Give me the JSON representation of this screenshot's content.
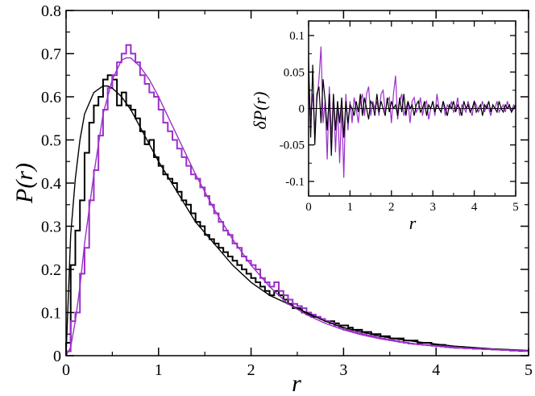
{
  "chart_data": [
    {
      "type": "line",
      "panel": "main",
      "xlabel": "r",
      "ylabel": "P(r)",
      "xlim": [
        0,
        5
      ],
      "ylim": [
        0,
        0.8
      ],
      "xticks": [
        0,
        1,
        2,
        3,
        4,
        5
      ],
      "yticks": [
        0,
        0.1,
        0.2,
        0.3,
        0.4,
        0.5,
        0.6,
        0.7,
        0.8
      ],
      "grid": false,
      "colors": {
        "black": "#000000",
        "purple": "#9b30c8"
      },
      "series": [
        {
          "kind": "histogram",
          "color": "#000000",
          "bin_width": 0.05,
          "bins_start": 0,
          "values": [
            0.03,
            0.21,
            0.29,
            0.36,
            0.47,
            0.54,
            0.58,
            0.6,
            0.64,
            0.65,
            0.64,
            0.58,
            0.61,
            0.58,
            0.57,
            0.55,
            0.52,
            0.49,
            0.5,
            0.46,
            0.44,
            0.42,
            0.41,
            0.4,
            0.38,
            0.36,
            0.35,
            0.33,
            0.31,
            0.3,
            0.28,
            0.27,
            0.26,
            0.25,
            0.24,
            0.23,
            0.22,
            0.21,
            0.2,
            0.19,
            0.18,
            0.17,
            0.16,
            0.15,
            0.14,
            0.15,
            0.14,
            0.13,
            0.12,
            0.11,
            0.11,
            0.1,
            0.095,
            0.09,
            0.09,
            0.085,
            0.08,
            0.08,
            0.075,
            0.07,
            0.07,
            0.065,
            0.06,
            0.06,
            0.055,
            0.055,
            0.05,
            0.05,
            0.045,
            0.045,
            0.04,
            0.04,
            0.04,
            0.035,
            0.035,
            0.035,
            0.03,
            0.03,
            0.03,
            0.025,
            0.025,
            0.025,
            0.02,
            0.02,
            0.02,
            0.02,
            0.018,
            0.018,
            0.016,
            0.016,
            0.015,
            0.015,
            0.014,
            0.014,
            0.013,
            0.013,
            0.012,
            0.012,
            0.011,
            0.011
          ]
        },
        {
          "kind": "histogram",
          "color": "#9b30c8",
          "bin_width": 0.05,
          "bins_start": 0,
          "values": [
            0.01,
            0.08,
            0.1,
            0.19,
            0.25,
            0.36,
            0.43,
            0.51,
            0.57,
            0.62,
            0.65,
            0.68,
            0.7,
            0.72,
            0.7,
            0.68,
            0.65,
            0.63,
            0.61,
            0.6,
            0.57,
            0.54,
            0.52,
            0.5,
            0.48,
            0.46,
            0.44,
            0.42,
            0.41,
            0.39,
            0.37,
            0.35,
            0.33,
            0.31,
            0.29,
            0.28,
            0.26,
            0.25,
            0.23,
            0.22,
            0.21,
            0.2,
            0.18,
            0.17,
            0.16,
            0.17,
            0.15,
            0.14,
            0.13,
            0.12,
            0.115,
            0.11,
            0.1,
            0.095,
            0.09,
            0.085,
            0.08,
            0.075,
            0.07,
            0.065,
            0.06,
            0.058,
            0.055,
            0.052,
            0.05,
            0.047,
            0.045,
            0.042,
            0.04,
            0.038,
            0.036,
            0.034,
            0.032,
            0.03,
            0.028,
            0.027,
            0.026,
            0.025,
            0.024,
            0.023,
            0.022,
            0.021,
            0.02,
            0.019,
            0.018,
            0.018,
            0.017,
            0.017,
            0.016,
            0.016,
            0.015,
            0.015,
            0.014,
            0.014,
            0.013,
            0.013,
            0.012,
            0.012,
            0.012,
            0.011
          ]
        },
        {
          "kind": "curve",
          "color": "#000000",
          "x": [
            0,
            0.05,
            0.1,
            0.15,
            0.2,
            0.3,
            0.4,
            0.45,
            0.5,
            0.6,
            0.7,
            0.8,
            0.9,
            1.0,
            1.2,
            1.4,
            1.6,
            1.8,
            2.0,
            2.2,
            2.4,
            2.6,
            2.8,
            3.0,
            3.2,
            3.4,
            3.6,
            3.8,
            4.0,
            4.2,
            4.4,
            4.6,
            4.8,
            5.0
          ],
          "y": [
            0,
            0.28,
            0.41,
            0.5,
            0.56,
            0.61,
            0.625,
            0.625,
            0.62,
            0.6,
            0.57,
            0.53,
            0.49,
            0.45,
            0.38,
            0.31,
            0.26,
            0.21,
            0.17,
            0.14,
            0.12,
            0.1,
            0.08,
            0.065,
            0.055,
            0.045,
            0.038,
            0.032,
            0.027,
            0.022,
            0.019,
            0.016,
            0.014,
            0.012
          ]
        },
        {
          "kind": "curve",
          "color": "#9b30c8",
          "x": [
            0,
            0.05,
            0.1,
            0.15,
            0.2,
            0.3,
            0.4,
            0.5,
            0.6,
            0.65,
            0.7,
            0.8,
            0.9,
            1.0,
            1.2,
            1.4,
            1.6,
            1.8,
            2.0,
            2.2,
            2.4,
            2.6,
            2.8,
            3.0,
            3.2,
            3.4,
            3.6,
            3.8,
            4.0,
            4.2,
            4.4,
            4.6,
            4.8,
            5.0
          ],
          "y": [
            0,
            0.02,
            0.08,
            0.16,
            0.26,
            0.42,
            0.56,
            0.64,
            0.685,
            0.69,
            0.69,
            0.67,
            0.64,
            0.6,
            0.51,
            0.42,
            0.34,
            0.27,
            0.21,
            0.16,
            0.12,
            0.095,
            0.075,
            0.06,
            0.048,
            0.039,
            0.032,
            0.027,
            0.023,
            0.02,
            0.017,
            0.015,
            0.013,
            0.011
          ]
        }
      ]
    },
    {
      "type": "line",
      "panel": "inset",
      "xlabel": "r",
      "ylabel": "δP(r)",
      "xlim": [
        0,
        5
      ],
      "ylim": [
        -0.12,
        0.12
      ],
      "xticks": [
        0,
        1,
        2,
        3,
        4,
        5
      ],
      "yticks": [
        "-0.1",
        "-0.05",
        "0",
        "0.05",
        "0.1"
      ],
      "ytick_values": [
        -0.1,
        -0.05,
        0,
        0.05,
        0.1
      ],
      "zero_line": true,
      "grid": false,
      "series": [
        {
          "color": "#000000",
          "x_start": 0,
          "x_step": 0.05,
          "values": [
            0.07,
            -0.04,
            0.06,
            -0.05,
            0.02,
            0.03,
            -0.02,
            0.04,
            0.01,
            -0.03,
            0.02,
            -0.065,
            0.02,
            -0.03,
            0.01,
            -0.02,
            0.015,
            -0.04,
            0.01,
            -0.02,
            0.005,
            0.0,
            -0.01,
            0.01,
            -0.005,
            0.02,
            -0.01,
            0.015,
            0.0,
            -0.015,
            0.01,
            0.005,
            -0.01,
            0.02,
            -0.005,
            0.01,
            0.0,
            -0.01,
            0.015,
            -0.005,
            0.01,
            0.0,
            0.005,
            -0.01,
            0.015,
            -0.005,
            0.02,
            -0.01,
            0.01,
            0.0,
            0.005,
            -0.01,
            0.005,
            0.01,
            -0.005,
            0.0,
            0.01,
            -0.01,
            0.005,
            0.0,
            0.01,
            -0.005,
            0.005,
            0.0,
            -0.005,
            0.01,
            0.0,
            -0.01,
            0.005,
            0.0,
            0.01,
            -0.005,
            0.005,
            0.0,
            -0.01,
            0.01,
            0.0,
            0.005,
            -0.005,
            0.0,
            0.01,
            -0.005,
            0.0,
            0.005,
            -0.01,
            0.005,
            0.0,
            0.01,
            -0.005,
            0.005,
            0.0,
            -0.005,
            0.01,
            0.0,
            -0.005,
            0.005,
            0.0,
            0.005,
            -0.005,
            0.0,
            0.005
          ]
        },
        {
          "color": "#9b30c8",
          "x_start": 0,
          "x_step": 0.05,
          "values": [
            0.03,
            -0.01,
            0.02,
            -0.03,
            0.01,
            0.04,
            0.085,
            -0.02,
            0.01,
            -0.07,
            0.03,
            -0.04,
            0.02,
            -0.06,
            0.01,
            -0.075,
            0.005,
            -0.095,
            0.02,
            -0.03,
            0.01,
            -0.02,
            0.015,
            0.0,
            -0.02,
            0.01,
            0.02,
            -0.01,
            0.02,
            0.03,
            -0.01,
            0.01,
            0.0,
            0.01,
            -0.01,
            0.02,
            0.025,
            -0.005,
            0.01,
            0.015,
            -0.02,
            0.02,
            0.045,
            -0.015,
            0.01,
            0.02,
            -0.01,
            0.0,
            0.01,
            -0.02,
            0.01,
            0.015,
            -0.005,
            0.0,
            0.015,
            -0.01,
            0.005,
            0.01,
            -0.015,
            0.0,
            0.01,
            -0.01,
            0.02,
            0.0,
            -0.005,
            0.01,
            -0.01,
            0.005,
            0.0,
            0.01,
            -0.005,
            0.0,
            0.015,
            -0.01,
            0.005,
            0.0,
            -0.005,
            0.01,
            0.0,
            -0.01,
            0.01,
            0.005,
            -0.005,
            0.0,
            0.01,
            -0.005,
            0.005,
            0.0,
            -0.01,
            0.005,
            0.0,
            0.01,
            -0.005,
            0.0,
            0.005,
            -0.005,
            0.01,
            0.0,
            -0.005,
            0.005,
            0.0
          ]
        }
      ]
    }
  ]
}
